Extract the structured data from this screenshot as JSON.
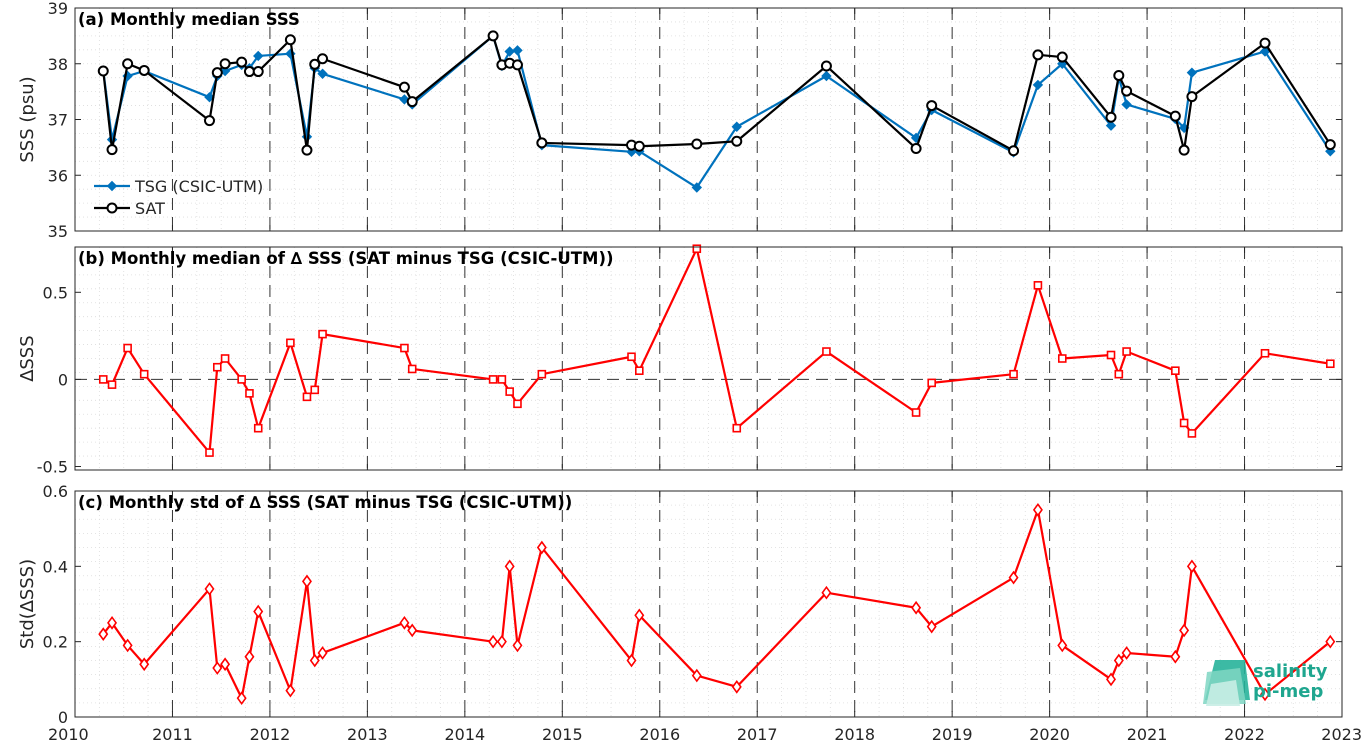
{
  "x_axis": {
    "ticks": [
      "2010",
      "2011",
      "2012",
      "2013",
      "2014",
      "2015",
      "2016",
      "2017",
      "2018",
      "2019",
      "2020",
      "2021",
      "2022",
      "2023"
    ],
    "range": [
      2010,
      2023
    ]
  },
  "logo": {
    "line1": "salinity",
    "line2": "pi-mep",
    "color": "#1fa68f"
  },
  "colors": {
    "tsg": "#0072bd",
    "sat": "#000000",
    "delta": "#ff0000"
  },
  "chart_data": [
    {
      "type": "line",
      "title": "(a) Monthly median SSS",
      "ylabel": "SSS (psu)",
      "ylim": [
        35,
        39
      ],
      "yticks": [
        "35",
        "36",
        "37",
        "38",
        "39"
      ],
      "grid": "dotted minor grid, dashed vertical year lines",
      "legend_position": "bottom-left",
      "x": [
        2010.29,
        2010.38,
        2010.54,
        2010.71,
        2011.38,
        2011.46,
        2011.54,
        2011.71,
        2011.79,
        2011.88,
        2012.21,
        2012.38,
        2012.46,
        2012.54,
        2013.38,
        2013.46,
        2014.29,
        2014.38,
        2014.46,
        2014.54,
        2014.79,
        2015.71,
        2015.79,
        2016.38,
        2016.79,
        2017.71,
        2018.63,
        2018.79,
        2019.63,
        2019.88,
        2020.13,
        2020.63,
        2020.71,
        2020.79,
        2021.29,
        2021.38,
        2021.46,
        2022.21,
        2022.88
      ],
      "series": [
        {
          "name": "TSG (CSIC-UTM)",
          "marker": "filled-diamond",
          "color": "#0072bd",
          "values": [
            37.88,
            36.64,
            37.78,
            37.87,
            37.4,
            37.78,
            37.87,
            37.98,
            37.92,
            38.14,
            38.18,
            36.69,
            37.92,
            37.82,
            37.36,
            37.27,
            38.5,
            37.96,
            38.22,
            38.24,
            36.54,
            36.42,
            36.43,
            35.78,
            36.87,
            37.78,
            36.67,
            37.17,
            36.41,
            37.62,
            38.0,
            36.89,
            37.75,
            37.27,
            37.01,
            36.85,
            37.84,
            38.22,
            36.43
          ]
        },
        {
          "name": "SAT",
          "marker": "open-circle",
          "color": "#000000",
          "values": [
            37.87,
            36.46,
            38.0,
            37.88,
            36.98,
            37.84,
            38.0,
            38.03,
            37.86,
            37.86,
            38.43,
            36.45,
            37.99,
            38.09,
            37.58,
            37.32,
            38.5,
            37.98,
            38.01,
            37.98,
            36.58,
            36.54,
            36.52,
            36.56,
            36.61,
            37.96,
            36.48,
            37.25,
            36.44,
            38.16,
            38.12,
            37.04,
            37.79,
            37.51,
            37.06,
            36.45,
            37.41,
            38.37,
            36.55
          ]
        }
      ]
    },
    {
      "type": "line",
      "title": "(b) Monthly median of ∆ SSS (SAT minus TSG (CSIC-UTM))",
      "ylabel": "∆SSS",
      "ylim": [
        -0.52,
        0.76
      ],
      "yticks": [
        "-0.5",
        "0",
        "0.5"
      ],
      "reference_line": 0,
      "x": [
        2010.29,
        2010.38,
        2010.54,
        2010.71,
        2011.38,
        2011.46,
        2011.54,
        2011.71,
        2011.79,
        2011.88,
        2012.21,
        2012.38,
        2012.46,
        2012.54,
        2013.38,
        2013.46,
        2014.29,
        2014.38,
        2014.46,
        2014.54,
        2014.79,
        2015.71,
        2015.79,
        2016.38,
        2016.79,
        2017.71,
        2018.63,
        2018.79,
        2019.63,
        2019.88,
        2020.13,
        2020.63,
        2020.71,
        2020.79,
        2021.29,
        2021.38,
        2021.46,
        2022.21,
        2022.88
      ],
      "series": [
        {
          "name": "",
          "marker": "open-square",
          "color": "#ff0000",
          "values": [
            0.0,
            -0.03,
            0.18,
            0.03,
            -0.42,
            0.07,
            0.12,
            0.0,
            -0.08,
            -0.28,
            0.21,
            -0.1,
            -0.06,
            0.26,
            0.18,
            0.06,
            0.0,
            0.0,
            -0.07,
            -0.14,
            0.03,
            0.13,
            0.05,
            0.75,
            -0.28,
            0.16,
            -0.19,
            -0.02,
            0.03,
            0.54,
            0.12,
            0.14,
            0.03,
            0.16,
            0.05,
            -0.25,
            -0.31,
            0.15,
            0.09
          ]
        }
      ]
    },
    {
      "type": "line",
      "title": "(c) Monthly std of ∆ SSS (SAT minus TSG (CSIC-UTM))",
      "ylabel": "Std(∆SSS)",
      "ylim": [
        0,
        0.6
      ],
      "yticks": [
        "0",
        "0.2",
        "0.4",
        "0.6"
      ],
      "x": [
        2010.29,
        2010.38,
        2010.54,
        2010.71,
        2011.38,
        2011.46,
        2011.54,
        2011.71,
        2011.79,
        2011.88,
        2012.21,
        2012.38,
        2012.46,
        2012.54,
        2013.38,
        2013.46,
        2014.29,
        2014.38,
        2014.46,
        2014.54,
        2014.79,
        2015.71,
        2015.79,
        2016.38,
        2016.79,
        2017.71,
        2018.63,
        2018.79,
        2019.63,
        2019.88,
        2020.13,
        2020.63,
        2020.71,
        2020.79,
        2021.29,
        2021.38,
        2021.46,
        2022.21,
        2022.88
      ],
      "series": [
        {
          "name": "",
          "marker": "open-diamond",
          "color": "#ff0000",
          "values": [
            0.22,
            0.25,
            0.19,
            0.14,
            0.34,
            0.13,
            0.14,
            0.05,
            0.16,
            0.28,
            0.07,
            0.36,
            0.15,
            0.17,
            0.25,
            0.23,
            0.2,
            0.2,
            0.4,
            0.19,
            0.45,
            0.15,
            0.27,
            0.11,
            0.08,
            0.33,
            0.29,
            0.24,
            0.37,
            0.55,
            0.19,
            0.1,
            0.15,
            0.17,
            0.16,
            0.23,
            0.4,
            0.06,
            0.2
          ]
        }
      ]
    }
  ]
}
